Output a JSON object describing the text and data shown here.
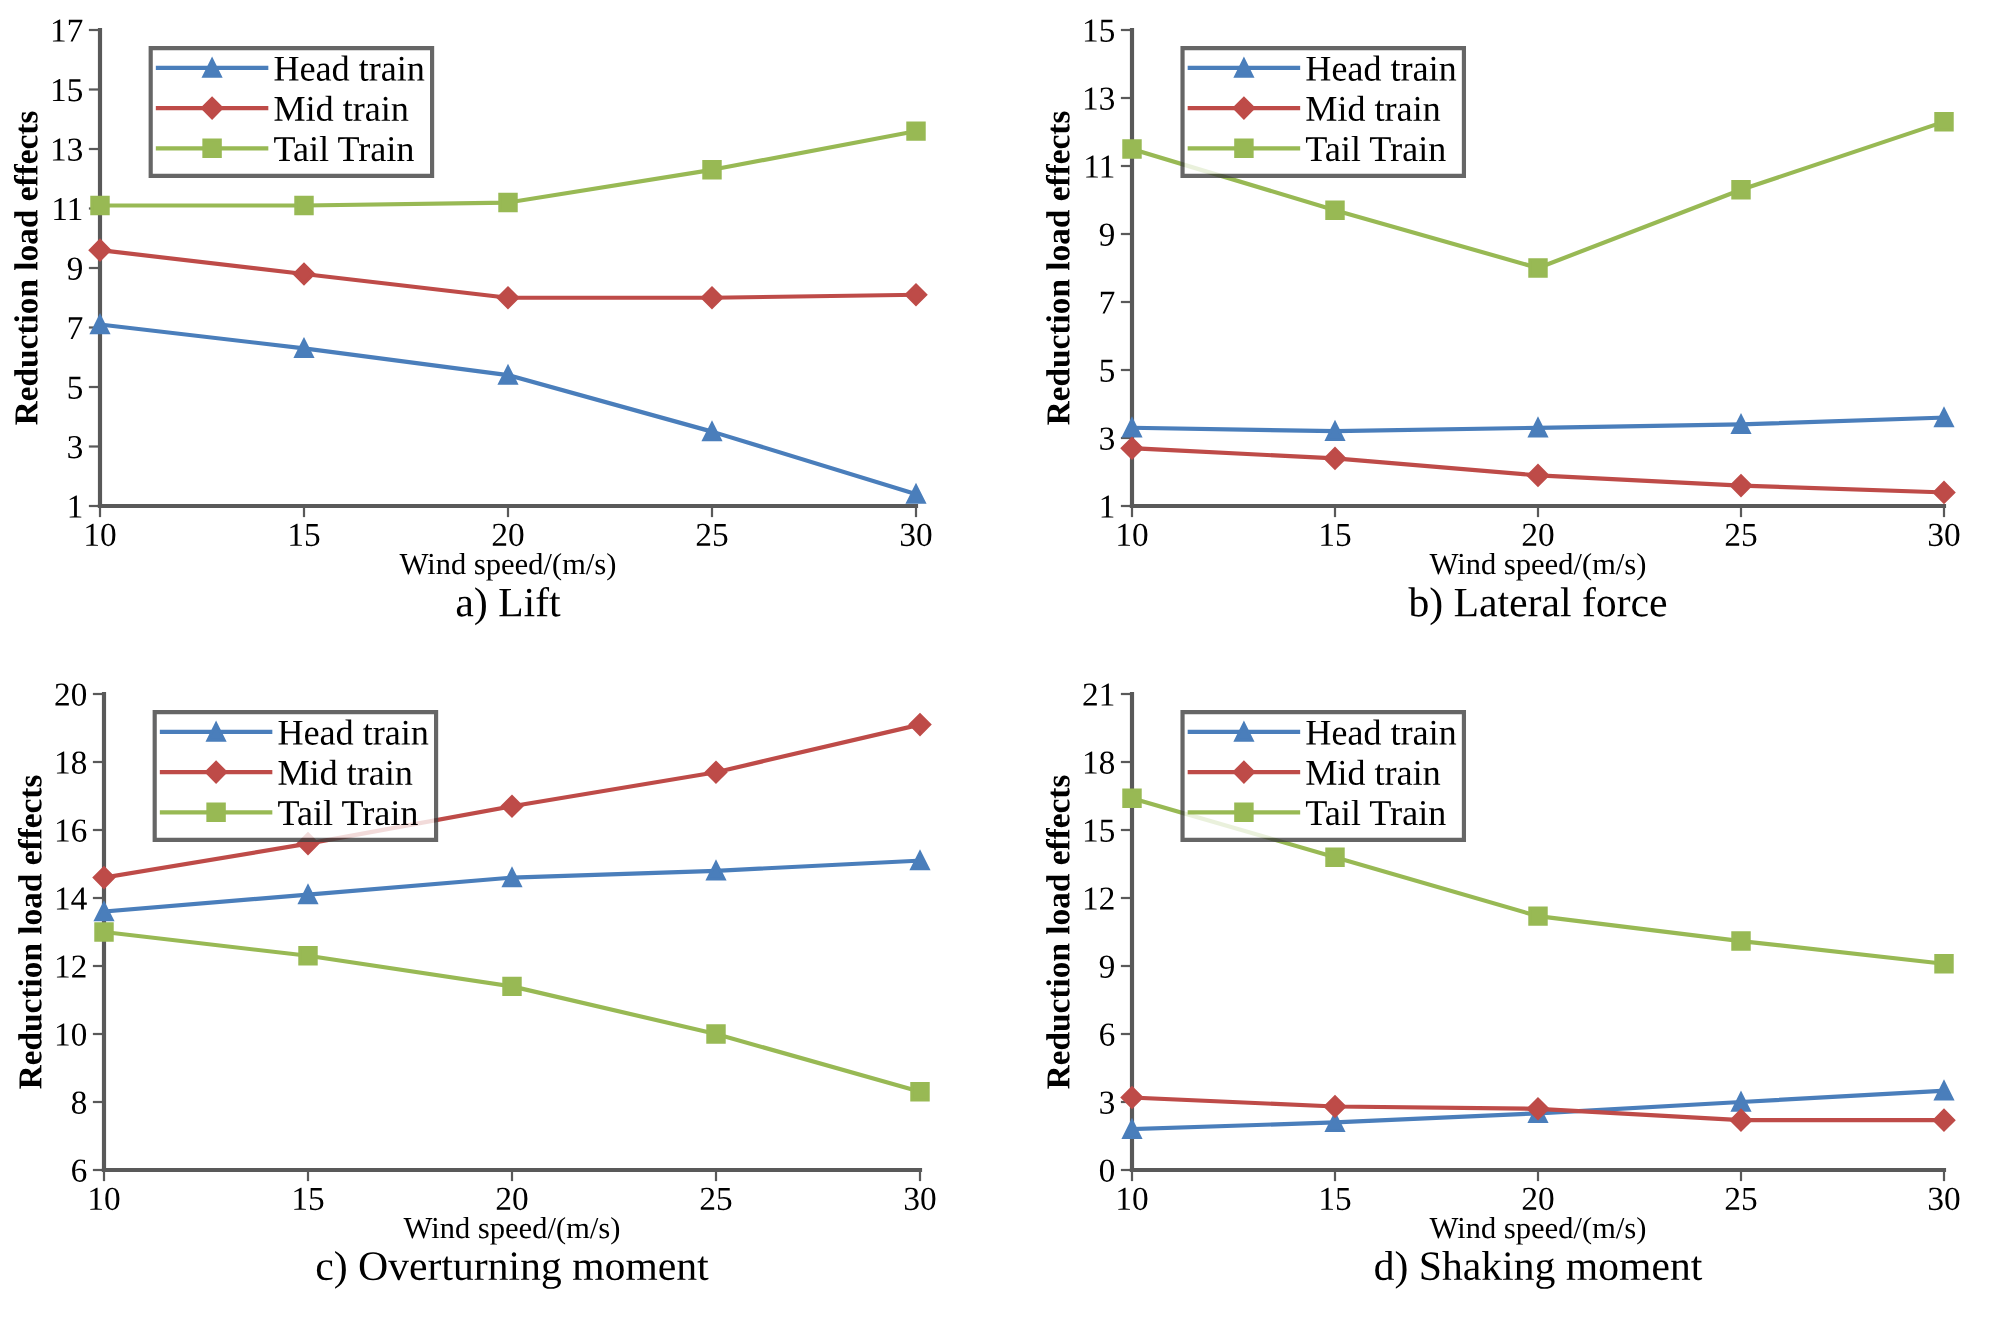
{
  "chart_data": [
    {
      "type": "line",
      "title": "a) Lift",
      "xlabel": "Wind speed/(m/s)",
      "ylabel": "Reduction load effects",
      "x": [
        10,
        15,
        20,
        25,
        30
      ],
      "xlim": [
        10,
        30
      ],
      "xticks": [
        10,
        15,
        20,
        25,
        30
      ],
      "ylim": [
        1,
        17
      ],
      "yticks": [
        1,
        3,
        5,
        7,
        9,
        11,
        13,
        15,
        17
      ],
      "legend": "top left",
      "grid": false,
      "line_style": "solid",
      "series": [
        {
          "name": "Head train",
          "color": "#4a7ebb",
          "marker": "triangle",
          "values": [
            7.1,
            6.3,
            5.4,
            3.5,
            1.4
          ]
        },
        {
          "name": "Mid train",
          "color": "#be4b48",
          "marker": "diamond",
          "values": [
            9.6,
            8.8,
            8.0,
            8.0,
            8.1
          ]
        },
        {
          "name": "Tail Train",
          "color": "#98b954",
          "marker": "square",
          "values": [
            11.1,
            11.1,
            11.2,
            12.3,
            13.6
          ]
        }
      ]
    },
    {
      "type": "line",
      "title": "b) Lateral force",
      "xlabel": "Wind speed/(m/s)",
      "ylabel": "Reduction load effects",
      "x": [
        10,
        15,
        20,
        25,
        30
      ],
      "xlim": [
        10,
        30
      ],
      "xticks": [
        10,
        15,
        20,
        25,
        30
      ],
      "ylim": [
        1,
        15
      ],
      "yticks": [
        1,
        3,
        5,
        7,
        9,
        11,
        13,
        15
      ],
      "legend": "top left",
      "grid": false,
      "line_style": "solid",
      "series": [
        {
          "name": "Head train",
          "color": "#4a7ebb",
          "marker": "triangle",
          "values": [
            3.3,
            3.2,
            3.3,
            3.4,
            3.6
          ]
        },
        {
          "name": "Mid train",
          "color": "#be4b48",
          "marker": "diamond",
          "values": [
            2.7,
            2.4,
            1.9,
            1.6,
            1.4
          ]
        },
        {
          "name": "Tail Train",
          "color": "#98b954",
          "marker": "square",
          "values": [
            11.5,
            9.7,
            8.0,
            10.3,
            12.3
          ]
        }
      ]
    },
    {
      "type": "line",
      "title": "c) Overturning moment",
      "xlabel": "Wind speed/(m/s)",
      "ylabel": "Reduction load effects",
      "x": [
        10,
        15,
        20,
        25,
        30
      ],
      "xlim": [
        10,
        30
      ],
      "xticks": [
        10,
        15,
        20,
        25,
        30
      ],
      "ylim": [
        6,
        20
      ],
      "yticks": [
        6,
        8,
        10,
        12,
        14,
        16,
        18,
        20
      ],
      "legend": "top left",
      "grid": false,
      "line_style": "solid",
      "series": [
        {
          "name": "Head train",
          "color": "#4a7ebb",
          "marker": "triangle",
          "values": [
            13.6,
            14.1,
            14.6,
            14.8,
            15.1
          ]
        },
        {
          "name": "Mid train",
          "color": "#be4b48",
          "marker": "diamond",
          "values": [
            14.6,
            15.6,
            16.7,
            17.7,
            19.1
          ]
        },
        {
          "name": "Tail Train",
          "color": "#98b954",
          "marker": "square",
          "values": [
            13.0,
            12.3,
            11.4,
            10.0,
            8.3
          ]
        }
      ]
    },
    {
      "type": "line",
      "title": "d) Shaking moment",
      "xlabel": "Wind speed/(m/s)",
      "ylabel": "Reduction load effects",
      "x": [
        10,
        15,
        20,
        25,
        30
      ],
      "xlim": [
        10,
        30
      ],
      "xticks": [
        10,
        15,
        20,
        25,
        30
      ],
      "ylim": [
        0,
        21
      ],
      "yticks": [
        0,
        3,
        6,
        9,
        12,
        15,
        18,
        21
      ],
      "legend": "top left",
      "grid": false,
      "line_style": "solid",
      "series": [
        {
          "name": "Head train",
          "color": "#4a7ebb",
          "marker": "triangle",
          "values": [
            1.8,
            2.1,
            2.5,
            3.0,
            3.5
          ]
        },
        {
          "name": "Mid train",
          "color": "#be4b48",
          "marker": "diamond",
          "values": [
            3.2,
            2.8,
            2.7,
            2.2,
            2.2
          ]
        },
        {
          "name": "Tail Train",
          "color": "#98b954",
          "marker": "square",
          "values": [
            16.4,
            13.8,
            11.2,
            10.1,
            9.1
          ]
        }
      ]
    }
  ]
}
